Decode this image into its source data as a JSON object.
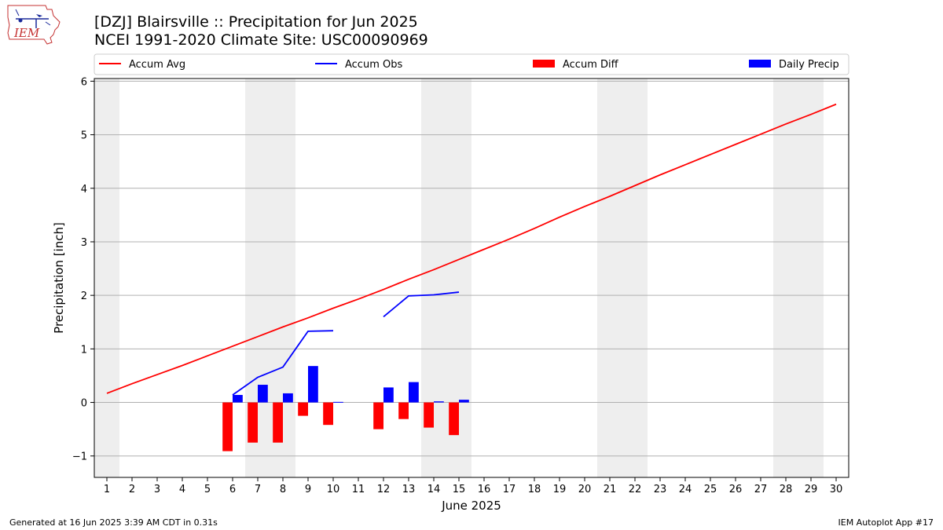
{
  "header": {
    "title": "[DZJ] Blairsville :: Precipitation for Jun 2025",
    "subtitle": "NCEI 1991-2020 Climate Site: USC00090969",
    "logo_text": "IEM"
  },
  "footer": {
    "generated": "Generated at 16 Jun 2025 3:39 AM CDT in 0.31s",
    "app": "IEM Autoplot App #17"
  },
  "colors": {
    "avg": "#ff0000",
    "obs": "#0000ff",
    "diff": "#ff0000",
    "daily": "#0000ff",
    "weekend_band": "#eeeeee",
    "grid": "#b0b0b0"
  },
  "chart_data": {
    "type": "bar",
    "xlabel": "June 2025",
    "ylabel": "Precipitation [inch]",
    "xlim": [
      0.5,
      30.5
    ],
    "ylim": [
      -1.4,
      6.05
    ],
    "yticks": [
      -1,
      0,
      1,
      2,
      3,
      4,
      5,
      6
    ],
    "ytick_labels": [
      "−1",
      "0",
      "1",
      "2",
      "3",
      "4",
      "5",
      "6"
    ],
    "x": [
      1,
      2,
      3,
      4,
      5,
      6,
      7,
      8,
      9,
      10,
      11,
      12,
      13,
      14,
      15,
      16,
      17,
      18,
      19,
      20,
      21,
      22,
      23,
      24,
      25,
      26,
      27,
      28,
      29,
      30
    ],
    "weekend_days": [
      1,
      7,
      8,
      14,
      15,
      21,
      22,
      28,
      29
    ],
    "grid": "y",
    "legend_placement": "top, outside plot",
    "legend": [
      "Accum Avg",
      "Accum Obs",
      "Accum Diff",
      "Daily Precip"
    ],
    "series": [
      {
        "name": "Accum Avg",
        "kind": "line",
        "x": [
          1,
          2,
          3,
          4,
          5,
          6,
          7,
          8,
          9,
          10,
          11,
          12,
          13,
          14,
          15,
          16,
          17,
          18,
          19,
          20,
          21,
          22,
          23,
          24,
          25,
          26,
          27,
          28,
          29,
          30
        ],
        "values": [
          0.17,
          0.35,
          0.52,
          0.69,
          0.87,
          1.05,
          1.23,
          1.41,
          1.58,
          1.76,
          1.93,
          2.11,
          2.3,
          2.48,
          2.67,
          2.86,
          3.05,
          3.25,
          3.46,
          3.66,
          3.85,
          4.05,
          4.25,
          4.44,
          4.63,
          4.82,
          5.01,
          5.2,
          5.38,
          5.57
        ]
      },
      {
        "name": "Accum Obs",
        "kind": "line",
        "x": [
          6,
          7,
          8,
          9,
          10,
          12,
          13,
          14,
          15
        ],
        "values": [
          0.14,
          0.47,
          0.66,
          1.33,
          1.34,
          1.6,
          1.99,
          2.01,
          2.06
        ],
        "gap_after_x": [
          10
        ]
      },
      {
        "name": "Accum Diff",
        "kind": "bar",
        "x": [
          6,
          7,
          8,
          9,
          10,
          12,
          13,
          14,
          15
        ],
        "values": [
          -0.91,
          -0.75,
          -0.75,
          -0.25,
          -0.42,
          -0.5,
          -0.31,
          -0.47,
          -0.61
        ]
      },
      {
        "name": "Daily Precip",
        "kind": "bar",
        "x": [
          6,
          7,
          8,
          9,
          10,
          12,
          13,
          14,
          15
        ],
        "values": [
          0.14,
          0.33,
          0.17,
          0.68,
          0.01,
          0.28,
          0.38,
          0.02,
          0.05
        ]
      }
    ]
  }
}
